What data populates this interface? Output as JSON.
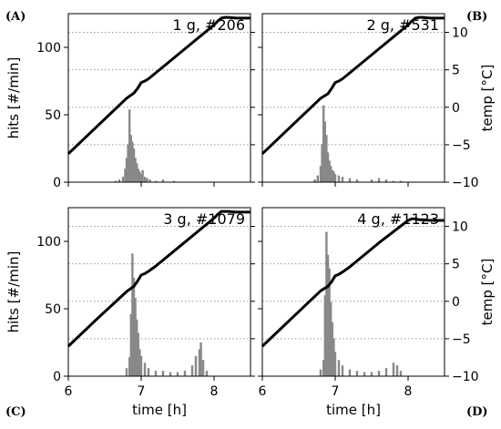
{
  "figure": {
    "panel_labels": [
      "(A)",
      "(B)",
      "(C)",
      "(D)"
    ]
  },
  "chart_data": [
    {
      "type": "bar+line",
      "panel": "(A)",
      "annotation": "1 g, #206",
      "xlabel": "",
      "ylabel": "hits [#/min]",
      "y2label": "",
      "xlim": [
        6,
        8.5
      ],
      "ylim": [
        0,
        125
      ],
      "y2lim": [
        -10,
        12.5
      ],
      "xticks": [
        6,
        7,
        8
      ],
      "yticks": [
        0,
        50,
        100
      ],
      "y2ticks": [
        -10,
        -5,
        0,
        5,
        10
      ],
      "grid": "dotted horizontal at temperature ticks",
      "bars": {
        "name": "hits",
        "x": [
          6.65,
          6.7,
          6.75,
          6.78,
          6.8,
          6.82,
          6.84,
          6.86,
          6.88,
          6.9,
          6.92,
          6.94,
          6.96,
          6.98,
          7.0,
          7.02,
          7.05,
          7.08,
          7.12,
          7.2,
          7.3,
          7.45
        ],
        "values": [
          1,
          2,
          4,
          10,
          18,
          28,
          54,
          35,
          30,
          25,
          18,
          14,
          10,
          8,
          6,
          9,
          4,
          3,
          2,
          1,
          2,
          1
        ],
        "color": "#888888"
      },
      "line": {
        "name": "temperature",
        "x": [
          6.0,
          6.4,
          6.8,
          6.9,
          6.95,
          7.0,
          7.05,
          7.1,
          7.2,
          7.6,
          8.0,
          8.05,
          8.1,
          8.15,
          8.2,
          8.3,
          8.5
        ],
        "values": [
          -6.2,
          -2.5,
          1.2,
          1.9,
          2.5,
          3.3,
          3.5,
          3.8,
          4.6,
          7.8,
          11.0,
          11.5,
          11.9,
          12.0,
          12.0,
          11.9,
          11.9
        ],
        "color": "#000000"
      }
    },
    {
      "type": "bar+line",
      "panel": "(B)",
      "annotation": "2 g, #531",
      "xlabel": "",
      "ylabel": "",
      "y2label": "temp [°C]",
      "xlim": [
        6,
        8.5
      ],
      "ylim": [
        0,
        125
      ],
      "y2lim": [
        -10,
        12.5
      ],
      "xticks": [
        6,
        7,
        8
      ],
      "yticks": [
        0,
        50,
        100
      ],
      "y2ticks": [
        -10,
        -5,
        0,
        5,
        10
      ],
      "grid": "dotted horizontal at temperature ticks",
      "bars": {
        "name": "hits",
        "x": [
          6.72,
          6.76,
          6.8,
          6.82,
          6.84,
          6.86,
          6.88,
          6.9,
          6.92,
          6.94,
          6.96,
          6.98,
          7.0,
          7.05,
          7.1,
          7.2,
          7.3,
          7.5,
          7.6,
          7.7,
          7.8,
          7.9
        ],
        "values": [
          2,
          5,
          12,
          28,
          57,
          45,
          35,
          22,
          16,
          12,
          9,
          8,
          6,
          5,
          4,
          3,
          2,
          2,
          3,
          2,
          1,
          1
        ],
        "color": "#888888"
      },
      "line": {
        "name": "temperature",
        "x": [
          6.0,
          6.4,
          6.8,
          6.9,
          6.95,
          7.0,
          7.05,
          7.1,
          7.2,
          7.6,
          8.0,
          8.05,
          8.1,
          8.15,
          8.2,
          8.3,
          8.5
        ],
        "values": [
          -6.2,
          -2.5,
          1.2,
          1.8,
          2.5,
          3.3,
          3.5,
          3.8,
          4.6,
          7.8,
          11.0,
          11.5,
          11.9,
          12.0,
          12.0,
          11.9,
          11.9
        ],
        "color": "#000000"
      }
    },
    {
      "type": "bar+line",
      "panel": "(C)",
      "annotation": "3 g, #1079",
      "xlabel": "time [h]",
      "ylabel": "hits [#/min]",
      "y2label": "",
      "xlim": [
        6,
        8.5
      ],
      "ylim": [
        0,
        125
      ],
      "y2lim": [
        -10,
        12.5
      ],
      "xticks": [
        6,
        7,
        8
      ],
      "yticks": [
        0,
        50,
        100
      ],
      "y2ticks": [
        -10,
        -5,
        0,
        5,
        10
      ],
      "grid": "dotted horizontal at temperature ticks",
      "bars": {
        "name": "hits",
        "x": [
          6.8,
          6.84,
          6.86,
          6.88,
          6.9,
          6.92,
          6.94,
          6.96,
          6.98,
          7.0,
          7.05,
          7.1,
          7.2,
          7.3,
          7.4,
          7.5,
          7.6,
          7.7,
          7.75,
          7.8,
          7.82,
          7.85,
          7.9
        ],
        "values": [
          6,
          14,
          46,
          91,
          73,
          58,
          42,
          32,
          20,
          15,
          10,
          6,
          4,
          4,
          3,
          3,
          4,
          8,
          15,
          20,
          25,
          12,
          4
        ],
        "color": "#888888"
      },
      "line": {
        "name": "temperature",
        "x": [
          6.0,
          6.4,
          6.8,
          6.9,
          6.95,
          7.0,
          7.05,
          7.1,
          7.2,
          7.6,
          8.0,
          8.05,
          8.1,
          8.15,
          8.2,
          8.3,
          8.5
        ],
        "values": [
          -6.0,
          -2.3,
          1.3,
          2.0,
          2.7,
          3.5,
          3.7,
          4.0,
          4.7,
          7.9,
          11.1,
          11.6,
          12.0,
          12.0,
          12.0,
          11.9,
          11.9
        ],
        "color": "#000000"
      }
    },
    {
      "type": "bar+line",
      "panel": "(D)",
      "annotation": "4 g, #1123",
      "xlabel": "time [h]",
      "ylabel": "",
      "y2label": "temp [°C]",
      "xlim": [
        6,
        8.5
      ],
      "ylim": [
        0,
        125
      ],
      "y2lim": [
        -10,
        12.5
      ],
      "xticks": [
        6,
        7,
        8
      ],
      "yticks": [
        0,
        50,
        100
      ],
      "y2ticks": [
        -10,
        -5,
        0,
        5,
        10
      ],
      "grid": "dotted horizontal at temperature ticks",
      "bars": {
        "name": "hits",
        "x": [
          6.8,
          6.84,
          6.86,
          6.88,
          6.9,
          6.92,
          6.94,
          6.96,
          6.98,
          7.0,
          7.05,
          7.1,
          7.2,
          7.3,
          7.4,
          7.5,
          7.6,
          7.7,
          7.8,
          7.85,
          7.9
        ],
        "values": [
          5,
          12,
          60,
          107,
          90,
          80,
          55,
          40,
          28,
          18,
          12,
          8,
          5,
          4,
          3,
          3,
          4,
          6,
          10,
          8,
          4
        ],
        "color": "#888888"
      },
      "line": {
        "name": "temperature",
        "x": [
          6.0,
          6.4,
          6.8,
          6.9,
          6.95,
          7.0,
          7.05,
          7.1,
          7.2,
          7.6,
          8.0,
          8.05,
          8.1,
          8.15,
          8.2,
          8.3,
          8.5
        ],
        "values": [
          -6.0,
          -2.3,
          1.4,
          2.0,
          2.6,
          3.4,
          3.6,
          3.9,
          4.6,
          7.8,
          10.8,
          11.0,
          11.0,
          10.9,
          10.9,
          10.8,
          10.8
        ],
        "color": "#000000"
      }
    }
  ]
}
